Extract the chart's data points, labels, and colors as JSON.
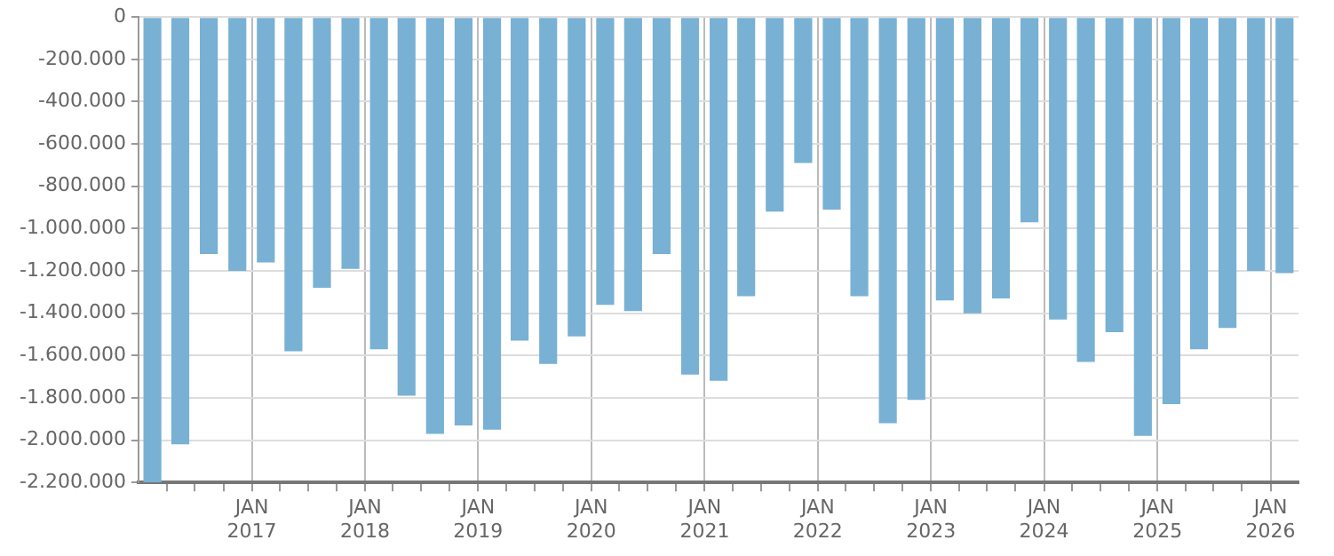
{
  "chart_data": {
    "type": "bar",
    "color": "#78b1d3",
    "x": [
      "2016-02-15",
      "2016-05-15",
      "2016-08-15",
      "2016-11-15",
      "2017-02-15",
      "2017-05-15",
      "2017-08-15",
      "2017-11-15",
      "2018-02-15",
      "2018-05-15",
      "2018-08-15",
      "2018-11-15",
      "2019-02-15",
      "2019-05-15",
      "2019-08-15",
      "2019-11-15",
      "2020-02-15",
      "2020-05-15",
      "2020-08-15",
      "2020-11-15",
      "2021-02-15",
      "2021-05-15",
      "2021-08-15",
      "2021-11-15",
      "2022-02-15",
      "2022-05-15",
      "2022-08-15",
      "2022-11-15",
      "2023-02-15",
      "2023-05-15",
      "2023-08-15",
      "2023-11-15",
      "2024-02-15",
      "2024-05-15",
      "2024-08-15",
      "2024-11-15",
      "2025-02-15",
      "2025-05-15",
      "2025-08-15",
      "2025-11-15",
      "2026-02-15"
    ],
    "values": [
      -2200000,
      -2020000,
      -1120000,
      -1200000,
      -1160000,
      -1580000,
      -1280000,
      -1190000,
      -1570000,
      -1790000,
      -1970000,
      -1930000,
      -1950000,
      -1530000,
      -1640000,
      -1510000,
      -1360000,
      -1390000,
      -1120000,
      -1690000,
      -1720000,
      -1320000,
      -920000,
      -690000,
      -910000,
      -1320000,
      -1920000,
      -1810000,
      -1340000,
      -1400000,
      -1330000,
      -970000,
      -1430000,
      -1630000,
      -1490000,
      -1980000,
      -1830000,
      -1570000,
      -1470000,
      -1200000,
      -1210000
    ],
    "xlim": [
      "2016-01-01",
      "2026-04-01"
    ],
    "xticks": [
      {
        "value": "2016-04-01",
        "label": null
      },
      {
        "value": "2016-07-01",
        "label": null
      },
      {
        "value": "2016-10-01",
        "label": null
      },
      {
        "value": "2017-01-01",
        "label": "JAN 2017"
      },
      {
        "value": "2017-04-01",
        "label": null
      },
      {
        "value": "2017-07-01",
        "label": null
      },
      {
        "value": "2017-10-01",
        "label": null
      },
      {
        "value": "2018-01-01",
        "label": "JAN 2018"
      },
      {
        "value": "2018-04-01",
        "label": null
      },
      {
        "value": "2018-07-01",
        "label": null
      },
      {
        "value": "2018-10-01",
        "label": null
      },
      {
        "value": "2019-01-01",
        "label": "JAN 2019"
      },
      {
        "value": "2019-04-01",
        "label": null
      },
      {
        "value": "2019-07-01",
        "label": null
      },
      {
        "value": "2019-10-01",
        "label": null
      },
      {
        "value": "2020-01-01",
        "label": "JAN 2020"
      },
      {
        "value": "2020-04-01",
        "label": null
      },
      {
        "value": "2020-07-01",
        "label": null
      },
      {
        "value": "2020-10-01",
        "label": null
      },
      {
        "value": "2021-01-01",
        "label": "JAN 2021"
      },
      {
        "value": "2021-04-01",
        "label": null
      },
      {
        "value": "2021-07-01",
        "label": null
      },
      {
        "value": "2021-10-01",
        "label": null
      },
      {
        "value": "2022-01-01",
        "label": "JAN 2022"
      },
      {
        "value": "2022-04-01",
        "label": null
      },
      {
        "value": "2022-07-01",
        "label": null
      },
      {
        "value": "2022-10-01",
        "label": null
      },
      {
        "value": "2023-01-01",
        "label": "JAN 2023"
      },
      {
        "value": "2023-04-01",
        "label": null
      },
      {
        "value": "2023-07-01",
        "label": null
      },
      {
        "value": "2023-10-01",
        "label": null
      },
      {
        "value": "2024-01-01",
        "label": "JAN 2024"
      },
      {
        "value": "2024-04-01",
        "label": null
      },
      {
        "value": "2024-07-01",
        "label": null
      },
      {
        "value": "2024-10-01",
        "label": null
      },
      {
        "value": "2025-01-01",
        "label": "JAN 2025"
      },
      {
        "value": "2025-04-01",
        "label": null
      },
      {
        "value": "2025-07-01",
        "label": null
      },
      {
        "value": "2025-10-01",
        "label": null
      },
      {
        "value": "2026-01-01",
        "label": "JAN 2026"
      }
    ],
    "ylim": [
      -2200000,
      0
    ],
    "yticks": [
      {
        "value": -2200000,
        "label": "-2.200.000"
      },
      {
        "value": -2000000,
        "label": "-2.000.000"
      },
      {
        "value": -1800000,
        "label": "-1.800.000"
      },
      {
        "value": -1600000,
        "label": "-1.600.000"
      },
      {
        "value": -1400000,
        "label": "-1.400.000"
      },
      {
        "value": -1200000,
        "label": "-1.200.000"
      },
      {
        "value": -1000000,
        "label": "-1.000.000"
      },
      {
        "value": -800000,
        "label": "-800.000"
      },
      {
        "value": -600000,
        "label": "-600.000"
      },
      {
        "value": -400000,
        "label": "-400.000"
      },
      {
        "value": -200000,
        "label": "-200.000"
      },
      0
    ],
    "grid": true
  }
}
